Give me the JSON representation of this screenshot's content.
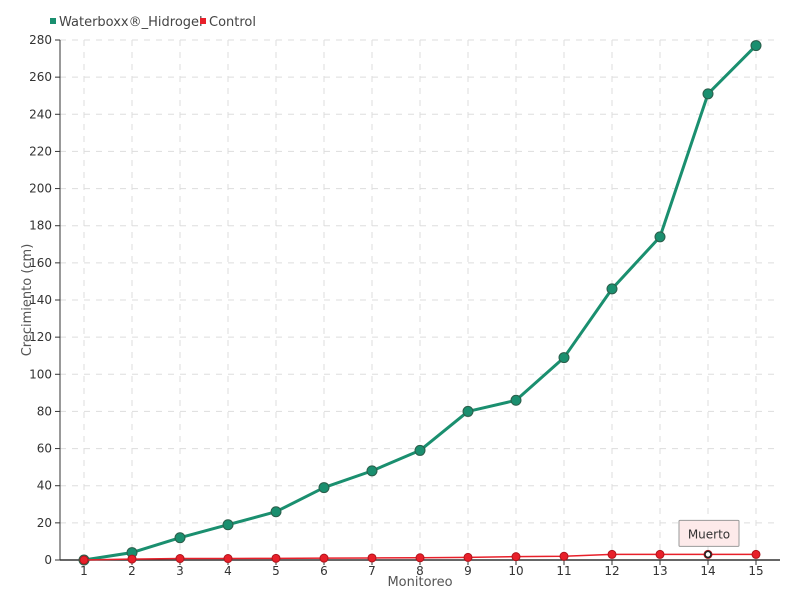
{
  "chart_data": {
    "type": "line",
    "title": "",
    "xlabel": "Monitoreo",
    "ylabel": "Crecimiento (cm)",
    "categories": [
      "1",
      "2",
      "3",
      "4",
      "5",
      "6",
      "7",
      "8",
      "9",
      "10",
      "11",
      "12",
      "13",
      "14",
      "15"
    ],
    "ylim": [
      0,
      280
    ],
    "yticks": [
      "0",
      "20",
      "40",
      "60",
      "80",
      "100",
      "120",
      "140",
      "160",
      "180",
      "200",
      "220",
      "240",
      "260",
      "280"
    ],
    "grid": true,
    "legend_position": "top-left",
    "series": [
      {
        "name": "Waterboxx®_Hidrogel",
        "color": "#1a8f6f",
        "values": [
          0,
          4,
          12,
          19,
          26,
          39,
          48,
          59,
          80,
          86,
          109,
          146,
          174,
          251,
          277
        ]
      },
      {
        "name": "Control",
        "color": "#e8202a",
        "values": [
          0,
          0.5,
          0.8,
          0.8,
          0.9,
          1.0,
          1.1,
          1.2,
          1.4,
          1.8,
          2.0,
          3.0,
          3.0,
          3.0,
          3.0
        ]
      }
    ],
    "annotations": [
      {
        "text": "Muerto",
        "series": 1,
        "index": 13
      }
    ]
  }
}
